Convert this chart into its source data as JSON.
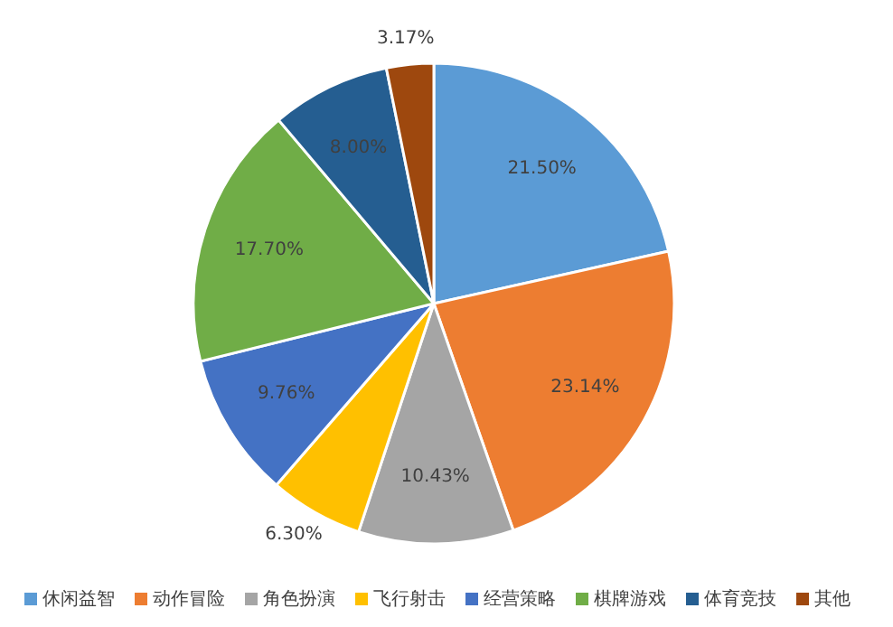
{
  "chart_data": {
    "type": "pie",
    "categories": [
      "休闲益智",
      "动作冒险",
      "角色扮演",
      "飞行射击",
      "经营策略",
      "棋牌游戏",
      "体育竞技",
      "其他"
    ],
    "values": [
      21.5,
      23.14,
      10.43,
      6.3,
      9.76,
      17.7,
      8.0,
      3.17
    ],
    "value_labels": [
      "21.50%",
      "23.14%",
      "10.43%",
      "6.30%",
      "9.76%",
      "17.70%",
      "8.00%",
      "3.17%"
    ],
    "colors": [
      "#5b9bd5",
      "#ed7d31",
      "#a5a5a5",
      "#ffc000",
      "#4472c4",
      "#70ad47",
      "#255e91",
      "#9e480e"
    ],
    "legend": "bottom"
  }
}
